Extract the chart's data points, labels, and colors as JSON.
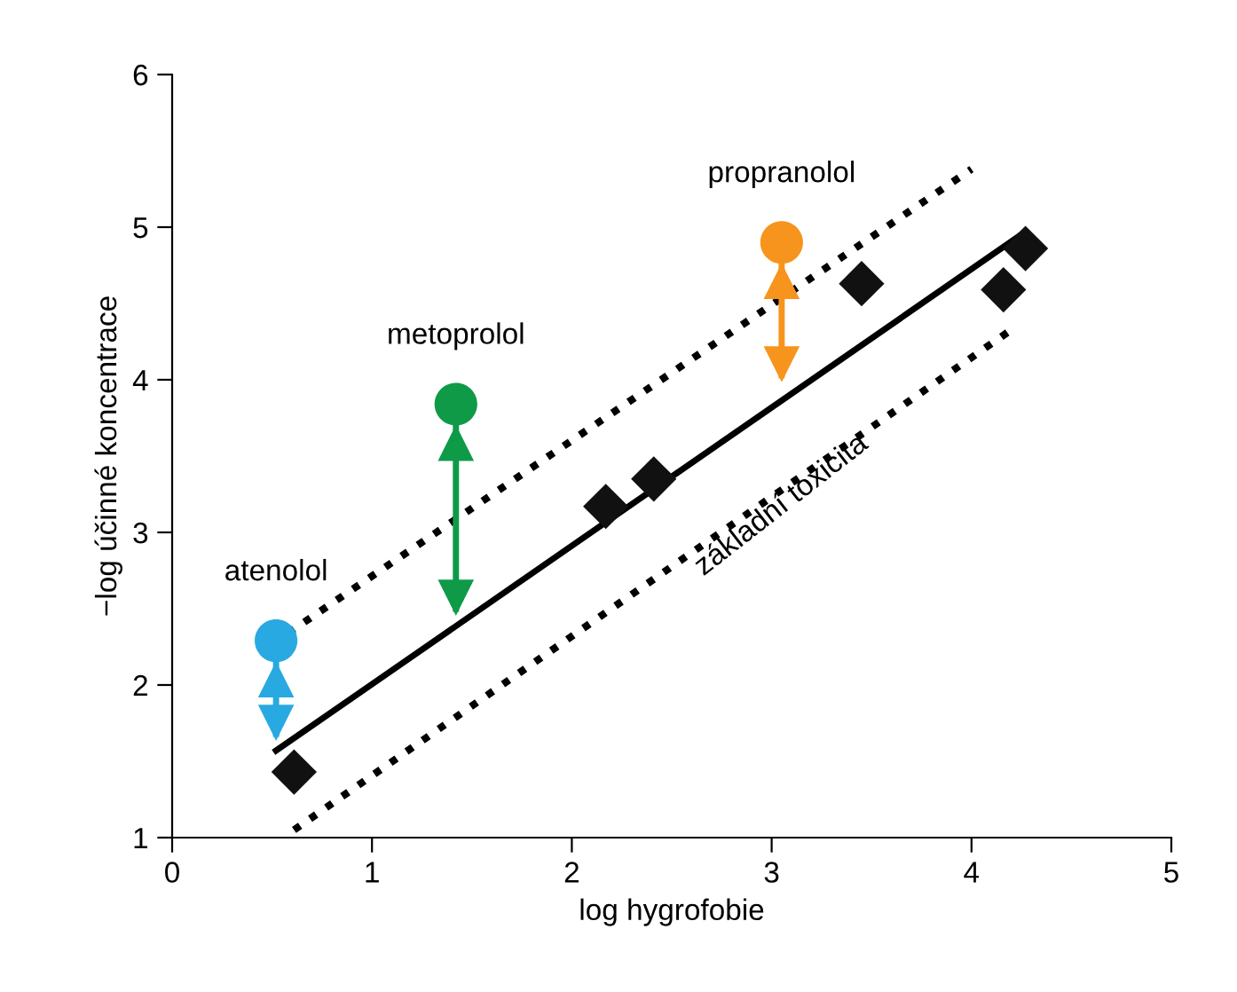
{
  "chart_data": {
    "type": "scatter",
    "xlabel": "log hygrofobie",
    "ylabel": "−log účinné koncentrace",
    "xlim": [
      0,
      5
    ],
    "ylim": [
      1,
      6
    ],
    "xticks": [
      0,
      1,
      2,
      3,
      4,
      5
    ],
    "yticks": [
      1,
      2,
      3,
      4,
      5,
      6
    ],
    "grid": false,
    "legend": false,
    "series": [
      {
        "type": "line",
        "color": "#000000",
        "line_style": "solid",
        "marker": "none",
        "x": [
          0.52,
          4.27
        ],
        "values": [
          1.57,
          4.97
        ]
      },
      {
        "type": "line",
        "color": "#000000",
        "line_style": "dotted",
        "marker": "none",
        "x": [
          0.58,
          4.0
        ],
        "values": [
          2.34,
          5.38
        ]
      },
      {
        "type": "line",
        "color": "#000000",
        "line_style": "dotted",
        "marker": "none",
        "x": [
          0.61,
          4.18
        ],
        "values": [
          1.05,
          4.31
        ]
      },
      {
        "color": "#111111",
        "marker": "diamond",
        "x": [
          0.61,
          2.17,
          2.41,
          3.45,
          4.16,
          4.27
        ],
        "values": [
          1.43,
          3.17,
          3.35,
          4.63,
          4.59,
          4.86
        ]
      },
      {
        "marker": "circle",
        "colors": [
          "#29a9e1",
          "#0f9a48",
          "#f7941d"
        ],
        "x": [
          0.52,
          1.42,
          3.05
        ],
        "values": [
          2.29,
          3.84,
          4.9
        ],
        "errors": [
          [
            1.66,
            2.29
          ],
          [
            2.48,
            3.84
          ],
          [
            4.01,
            4.9
          ]
        ]
      }
    ],
    "annotations": [
      {
        "text": "atenolol",
        "x": 0.52,
        "y": 2.29
      },
      {
        "text": "metoprolol",
        "x": 1.42,
        "y": 3.84
      },
      {
        "text": "propranolol",
        "x": 3.05,
        "y": 4.9
      },
      "základní toxicita"
    ]
  }
}
